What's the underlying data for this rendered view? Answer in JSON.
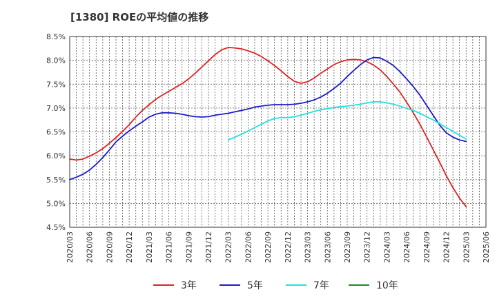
{
  "chart_data": {
    "type": "line",
    "title": "[1380]  ROEの平均値の推移",
    "xlabel": "",
    "ylabel": "",
    "ylim": [
      4.5,
      8.5
    ],
    "y_ticks": [
      "8.5%",
      "8.0%",
      "7.5%",
      "7.0%",
      "6.5%",
      "6.0%",
      "5.5%",
      "5.0%",
      "4.5%"
    ],
    "y_tick_values": [
      8.5,
      8.0,
      7.5,
      7.0,
      6.5,
      6.0,
      5.5,
      5.0,
      4.5
    ],
    "x_ticks": [
      "2020/03",
      "2020/06",
      "2020/09",
      "2020/12",
      "2021/03",
      "2021/06",
      "2021/09",
      "2021/12",
      "2022/03",
      "2022/06",
      "2022/09",
      "2022/12",
      "2023/03",
      "2023/06",
      "2023/09",
      "2023/12",
      "2024/03",
      "2024/06",
      "2024/09",
      "2024/12",
      "2025/03",
      "2025/06"
    ],
    "grid": true,
    "legend_position": "bottom",
    "series": [
      {
        "name": "3年",
        "color": "#dd2222",
        "x": [
          "2020/03",
          "2020/04",
          "2020/05",
          "2020/06",
          "2020/07",
          "2020/08",
          "2020/09",
          "2020/10",
          "2020/11",
          "2020/12",
          "2021/01",
          "2021/02",
          "2021/03",
          "2021/04",
          "2021/05",
          "2021/06",
          "2021/07",
          "2021/08",
          "2021/09",
          "2021/10",
          "2021/11",
          "2021/12",
          "2022/01",
          "2022/02",
          "2022/03",
          "2022/04",
          "2022/05",
          "2022/06",
          "2022/07",
          "2022/08",
          "2022/09",
          "2022/10",
          "2022/11",
          "2022/12",
          "2023/01",
          "2023/02",
          "2023/03",
          "2023/04",
          "2023/05",
          "2023/06",
          "2023/07",
          "2023/08",
          "2023/09",
          "2023/10",
          "2023/11",
          "2023/12",
          "2024/01",
          "2024/02",
          "2024/03",
          "2024/04",
          "2024/05",
          "2024/06",
          "2024/07",
          "2024/08",
          "2024/09",
          "2024/10",
          "2024/11",
          "2024/12",
          "2025/01",
          "2025/02",
          "2025/03"
        ],
        "values": [
          5.93,
          5.91,
          5.93,
          5.99,
          6.06,
          6.15,
          6.26,
          6.38,
          6.51,
          6.65,
          6.81,
          6.95,
          7.07,
          7.18,
          7.27,
          7.35,
          7.43,
          7.51,
          7.61,
          7.73,
          7.86,
          7.99,
          8.12,
          8.22,
          8.27,
          8.26,
          8.24,
          8.2,
          8.15,
          8.08,
          7.99,
          7.89,
          7.78,
          7.66,
          7.56,
          7.52,
          7.55,
          7.63,
          7.73,
          7.82,
          7.91,
          7.97,
          8.01,
          8.02,
          8.01,
          7.97,
          7.9,
          7.8,
          7.66,
          7.5,
          7.33,
          7.12,
          6.9,
          6.66,
          6.4,
          6.13,
          5.86,
          5.58,
          5.33,
          5.11,
          4.93
        ]
      },
      {
        "name": "5年",
        "color": "#1a1acc",
        "x": [
          "2020/03",
          "2020/04",
          "2020/05",
          "2020/06",
          "2020/07",
          "2020/08",
          "2020/09",
          "2020/10",
          "2020/11",
          "2020/12",
          "2021/01",
          "2021/02",
          "2021/03",
          "2021/04",
          "2021/05",
          "2021/06",
          "2021/07",
          "2021/08",
          "2021/09",
          "2021/10",
          "2021/11",
          "2021/12",
          "2022/01",
          "2022/02",
          "2022/03",
          "2022/04",
          "2022/05",
          "2022/06",
          "2022/07",
          "2022/08",
          "2022/09",
          "2022/10",
          "2022/11",
          "2022/12",
          "2023/01",
          "2023/02",
          "2023/03",
          "2023/04",
          "2023/05",
          "2023/06",
          "2023/07",
          "2023/08",
          "2023/09",
          "2023/10",
          "2023/11",
          "2023/12",
          "2024/01",
          "2024/02",
          "2024/03",
          "2024/04",
          "2024/05",
          "2024/06",
          "2024/07",
          "2024/08",
          "2024/09",
          "2024/10",
          "2024/11",
          "2024/12",
          "2025/01",
          "2025/02",
          "2025/03"
        ],
        "values": [
          5.5,
          5.55,
          5.61,
          5.7,
          5.82,
          5.96,
          6.12,
          6.29,
          6.41,
          6.52,
          6.62,
          6.71,
          6.81,
          6.87,
          6.9,
          6.9,
          6.89,
          6.87,
          6.84,
          6.82,
          6.81,
          6.82,
          6.85,
          6.87,
          6.89,
          6.92,
          6.95,
          6.98,
          7.02,
          7.04,
          7.06,
          7.07,
          7.07,
          7.07,
          7.08,
          7.1,
          7.13,
          7.17,
          7.23,
          7.31,
          7.41,
          7.52,
          7.66,
          7.79,
          7.91,
          8.01,
          8.06,
          8.05,
          7.98,
          7.89,
          7.76,
          7.61,
          7.45,
          7.27,
          7.06,
          6.85,
          6.64,
          6.48,
          6.39,
          6.33,
          6.3
        ]
      },
      {
        "name": "7年",
        "color": "#22e0e0",
        "x": [
          "2022/03",
          "2022/04",
          "2022/05",
          "2022/06",
          "2022/07",
          "2022/08",
          "2022/09",
          "2022/10",
          "2022/11",
          "2022/12",
          "2023/01",
          "2023/02",
          "2023/03",
          "2023/04",
          "2023/05",
          "2023/06",
          "2023/07",
          "2023/08",
          "2023/09",
          "2023/10",
          "2023/11",
          "2023/12",
          "2024/01",
          "2024/02",
          "2024/03",
          "2024/04",
          "2024/05",
          "2024/06",
          "2024/07",
          "2024/08",
          "2024/09",
          "2024/10",
          "2024/11",
          "2024/12",
          "2025/01",
          "2025/02",
          "2025/03"
        ],
        "values": [
          6.33,
          6.39,
          6.45,
          6.52,
          6.59,
          6.66,
          6.73,
          6.78,
          6.8,
          6.8,
          6.82,
          6.85,
          6.89,
          6.93,
          6.96,
          6.99,
          7.01,
          7.03,
          7.04,
          7.06,
          7.08,
          7.11,
          7.13,
          7.13,
          7.11,
          7.08,
          7.04,
          6.99,
          6.95,
          6.89,
          6.82,
          6.75,
          6.67,
          6.59,
          6.51,
          6.43,
          6.35
        ]
      },
      {
        "name": "10年",
        "color": "#1a8c1a",
        "x": [],
        "values": []
      }
    ]
  }
}
